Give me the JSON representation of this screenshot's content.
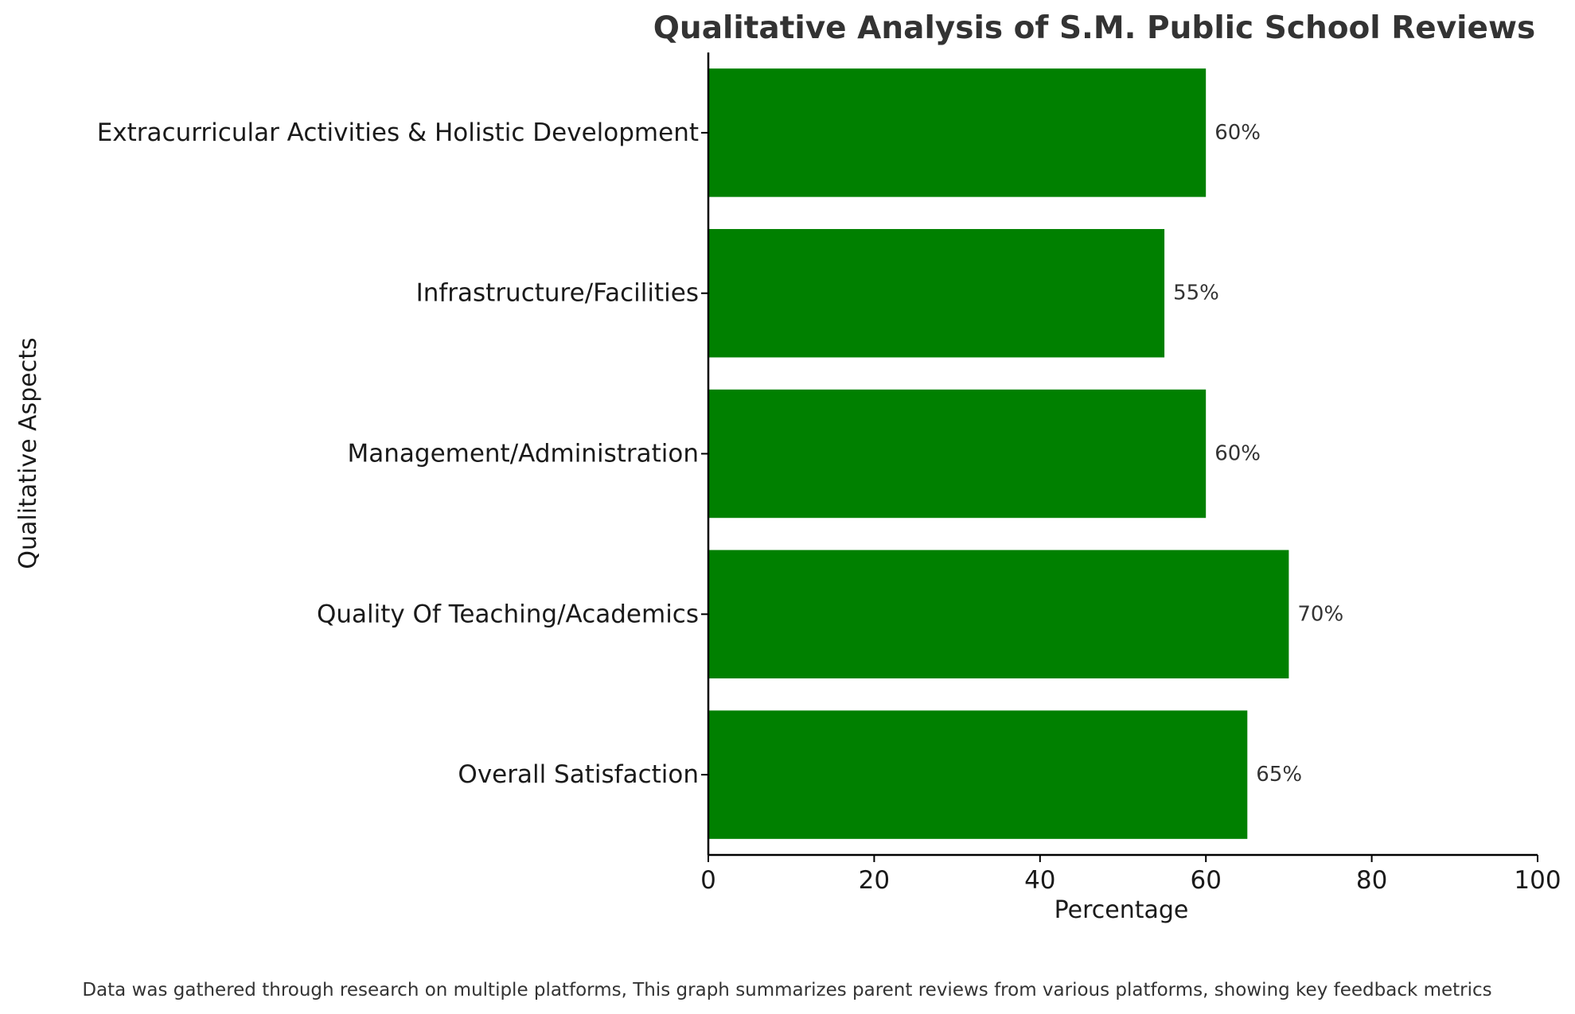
{
  "chart_data": {
    "type": "bar",
    "orientation": "horizontal",
    "title": "Qualitative Analysis of S.M. Public School Reviews",
    "xlabel": "Percentage",
    "ylabel": "Qualitative Aspects",
    "xlim": [
      0,
      100
    ],
    "xticks": [
      0,
      20,
      40,
      60,
      80,
      100
    ],
    "categories": [
      "Overall Satisfaction",
      "Quality Of Teaching/Academics",
      "Management/Administration",
      "Infrastructure/Facilities",
      "Extracurricular Activities & Holistic Development"
    ],
    "values": [
      65,
      70,
      60,
      55,
      60
    ],
    "value_labels": [
      "65%",
      "70%",
      "60%",
      "55%",
      "60%"
    ],
    "bar_color": "#008000",
    "grid": false,
    "footnote": "Data was gathered through research on multiple platforms, This graph summarizes parent reviews from various platforms, showing key feedback metrics"
  }
}
